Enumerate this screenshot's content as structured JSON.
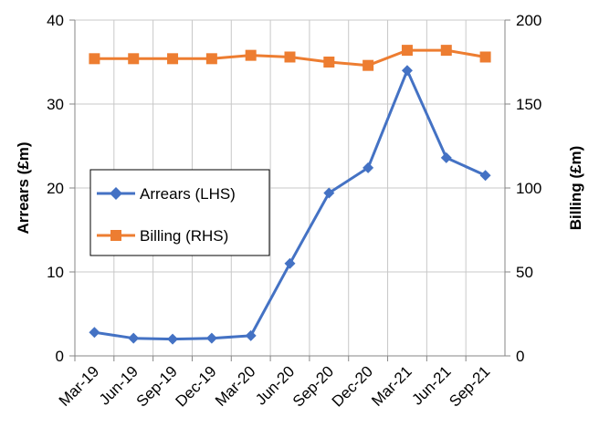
{
  "chart_data": {
    "type": "line",
    "categories": [
      "Mar-19",
      "Jun-19",
      "Sep-19",
      "Dec-19",
      "Mar-20",
      "Jun-20",
      "Sep-20",
      "Dec-20",
      "Mar-21",
      "Jun-21",
      "Sep-21"
    ],
    "series": [
      {
        "name": "Arrears (LHS)",
        "axis": "left",
        "color": "#4472C4",
        "marker": "diamond",
        "values": [
          2.8,
          2.1,
          2.0,
          2.1,
          2.4,
          11.0,
          19.4,
          22.4,
          34.0,
          23.6,
          21.5
        ]
      },
      {
        "name": "Billing (RHS)",
        "axis": "right",
        "color": "#ED7D31",
        "marker": "square",
        "values": [
          177,
          177,
          177,
          177,
          179,
          178,
          175,
          173,
          182,
          182,
          178
        ]
      }
    ],
    "ylabel_left": "Arrears (£m)",
    "ylabel_right": "Billing (£m)",
    "ylim_left": [
      0,
      40
    ],
    "ylim_right": [
      0,
      200
    ],
    "yticks_left": [
      "0",
      "10",
      "20",
      "30",
      "40"
    ],
    "yticks_right": [
      "0",
      "50",
      "100",
      "150",
      "200"
    ],
    "grid": true,
    "legend_position": "center-left"
  }
}
